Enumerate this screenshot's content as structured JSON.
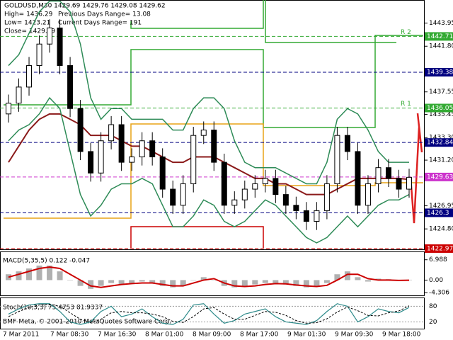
{
  "chart_data": {
    "type": "candlestick",
    "info": [
      "GOLDUSD,M30  1429.69 1429.76 1429.08 1429.62",
      "High= 1436.29",
      "Previous Days Range= 13.08",
      "Low= 1423.21",
      "Current Days Range= 191",
      "Close= 1429.69"
    ],
    "copyright": "BMF-Meta, © 2001-2010 MetaQuotes Software Corp.",
    "ylim": [
      1422.9,
      1446.1
    ],
    "yticks": [
      {
        "value": 1443.95,
        "label": "1443.95"
      },
      {
        "value": 1441.8,
        "label": "1441.80"
      },
      1437.55,
      1435.45,
      {
        "value": 1433.3,
        "label": "1433.30"
      },
      {
        "value": 1431.2,
        "label": "1431.20"
      },
      1426.95,
      {
        "value": 1424.8,
        "label": "1424.80"
      }
    ],
    "levels": [
      {
        "value": 1442.71,
        "color": "#33aa33",
        "label": "R 2"
      },
      {
        "value": 1439.38,
        "color": "#000080"
      },
      {
        "value": 1436.05,
        "color": "#33aa33",
        "label": "R 1"
      },
      {
        "value": 1432.84,
        "color": "#000080"
      },
      {
        "value": 1429.63,
        "color": "#cc33cc"
      },
      {
        "value": 1426.3,
        "color": "#000080"
      },
      {
        "value": 1422.97,
        "color": "#cc0000"
      }
    ],
    "xtick_labels": [
      "7 Mar 2011",
      "7 Mar 08:30",
      "7 Mar 16:30",
      "8 Mar 01:00",
      "8 Mar 09:00",
      "8 Mar 17:00",
      "9 Mar 01:30",
      "9 Mar 09:30",
      "9 Mar 18:00"
    ],
    "open": [
      1435.5,
      1436.5,
      1438,
      1440,
      1442,
      1443.5,
      1440,
      1436,
      1432,
      1430,
      1433,
      1434.5,
      1431,
      1431.5,
      1433,
      1431.5,
      1428.5,
      1427,
      1429,
      1433.5,
      1434,
      1431,
      1427,
      1427.5,
      1428.5,
      1429,
      1429.5,
      1428,
      1427,
      1426.5,
      1425.5,
      1426.5,
      1429,
      1433.5,
      1432,
      1427,
      1429,
      1430.5,
      1429.5,
      1428.5
    ],
    "high": [
      1437.3,
      1438.8,
      1440.8,
      1442.8,
      1444.3,
      1444.3,
      1440.8,
      1436.8,
      1432.8,
      1433.8,
      1435.3,
      1435.3,
      1432.3,
      1433.8,
      1433.8,
      1432.3,
      1429.3,
      1429.8,
      1434.3,
      1434.8,
      1434.8,
      1431.8,
      1428.3,
      1429.3,
      1429.8,
      1430.3,
      1430.3,
      1428.8,
      1427.8,
      1427.3,
      1427.3,
      1429.8,
      1434.3,
      1434.3,
      1432.8,
      1429.8,
      1431.3,
      1431.3,
      1430.3,
      1430.4
    ],
    "low": [
      1434.7,
      1435.7,
      1437.2,
      1439.2,
      1441.2,
      1439.2,
      1435.2,
      1431.2,
      1429.2,
      1429.2,
      1432.2,
      1430.2,
      1430.2,
      1430.7,
      1430.7,
      1427.7,
      1426.2,
      1426.2,
      1428.2,
      1432.7,
      1430.2,
      1426.2,
      1426.2,
      1426.7,
      1427.7,
      1428.2,
      1427.2,
      1426.2,
      1425.7,
      1424.7,
      1424.7,
      1425.7,
      1428.2,
      1431.2,
      1426.2,
      1426.2,
      1428.2,
      1428.7,
      1427.7,
      1427.7
    ],
    "close": [
      1436.5,
      1438,
      1440,
      1442,
      1443.5,
      1440,
      1436,
      1432,
      1430,
      1433,
      1434.5,
      1431,
      1431.5,
      1433,
      1431.5,
      1428.5,
      1427,
      1429,
      1433.5,
      1434,
      1431,
      1427,
      1427.5,
      1428.5,
      1429,
      1429.5,
      1428,
      1427,
      1426.5,
      1425.5,
      1426.5,
      1429,
      1433.5,
      1432,
      1427,
      1429,
      1430.5,
      1429.5,
      1428.5,
      1429.6
    ],
    "series": [
      {
        "color": "#8b1a1a",
        "values": [
          1431,
          1432.5,
          1434,
          1435,
          1435.5,
          1435.5,
          1435,
          1434.5,
          1433.5,
          1433.5,
          1433.5,
          1433,
          1432.5,
          1432.5,
          1432,
          1431.5,
          1431,
          1431,
          1431.5,
          1431.5,
          1431.5,
          1431,
          1430.5,
          1430,
          1429.5,
          1429.5,
          1429,
          1429,
          1428.5,
          1428,
          1428,
          1428,
          1428.5,
          1429,
          1429.5,
          1429.5,
          1429.5,
          1429.5,
          1429.5,
          1429.4
        ]
      },
      {
        "color": "#2e8b57",
        "values": [
          1440,
          1441,
          1443,
          1445,
          1446,
          1446,
          1445,
          1442,
          1437,
          1435,
          1436,
          1436,
          1435,
          1435,
          1435,
          1435,
          1434,
          1434,
          1436,
          1437,
          1437,
          1436,
          1433,
          1431,
          1430.5,
          1430.5,
          1430.5,
          1430,
          1429.5,
          1429,
          1429,
          1431,
          1435,
          1436,
          1435.5,
          1434,
          1432,
          1431,
          1431,
          1431
        ]
      },
      {
        "color": "#2e8b57",
        "values": [
          1433,
          1434,
          1434.5,
          1435.5,
          1437,
          1436,
          1432,
          1428,
          1426,
          1427,
          1428.5,
          1429,
          1429,
          1429.5,
          1429,
          1427,
          1425,
          1425,
          1426,
          1427.5,
          1427,
          1425.5,
          1425,
          1425.5,
          1426.5,
          1427.5,
          1427,
          1426,
          1425,
          1424,
          1423.5,
          1424,
          1425,
          1426,
          1425,
          1426,
          1427,
          1427.5,
          1427.5,
          1428
        ]
      }
    ],
    "macd": {
      "label": "MACD(5,35,5) 0.122 -0.047",
      "ylim": [
        -5.25,
        9.6
      ],
      "yticks": [
        {
          "value": 6.988,
          "label": "6.988"
        },
        {
          "value": 0,
          "label": "0.00"
        },
        {
          "value": -4.306,
          "label": "-4.306"
        }
      ],
      "histogram": [
        2,
        3,
        4,
        5,
        5,
        3,
        0,
        -2,
        -3,
        -2,
        -1,
        -1.5,
        -1,
        -0.5,
        -1,
        -2,
        -2.5,
        -2,
        0,
        1,
        0,
        -2,
        -2.5,
        -2,
        -1.5,
        -1,
        -1,
        -1.5,
        -2,
        -2.5,
        -2,
        -1,
        2,
        3,
        1,
        -0.5,
        0.5,
        0.3,
        0,
        0.122
      ],
      "signal": [
        1,
        2,
        3,
        4,
        4.5,
        4,
        2,
        0,
        -2,
        -2.5,
        -2,
        -1.5,
        -1.2,
        -1,
        -1,
        -1.5,
        -2,
        -2,
        -1,
        0,
        0.5,
        -1,
        -2,
        -2.2,
        -2,
        -1.5,
        -1.2,
        -1.3,
        -1.7,
        -2,
        -2.2,
        -1.8,
        0,
        2,
        2,
        0.5,
        0,
        0,
        -0.1,
        -0.047
      ]
    },
    "stoch": {
      "label": "Stoch(10,3,3) 75.4753 81.9337",
      "ylim": [
        -6,
        111
      ],
      "yticks": [
        80,
        20
      ],
      "main": [
        50,
        70,
        85,
        90,
        90,
        60,
        20,
        10,
        20,
        60,
        80,
        40,
        50,
        70,
        40,
        15,
        10,
        30,
        85,
        90,
        50,
        15,
        25,
        50,
        60,
        70,
        40,
        20,
        15,
        10,
        25,
        60,
        90,
        80,
        20,
        40,
        70,
        60,
        55,
        75.4753
      ],
      "signal": [
        40,
        60,
        75,
        85,
        88,
        80,
        55,
        30,
        18,
        30,
        55,
        60,
        55,
        55,
        50,
        40,
        22,
        18,
        40,
        70,
        75,
        50,
        30,
        30,
        45,
        60,
        57,
        45,
        25,
        15,
        17,
        32,
        58,
        77,
        63,
        45,
        43,
        55,
        62,
        81.9337
      ]
    }
  }
}
